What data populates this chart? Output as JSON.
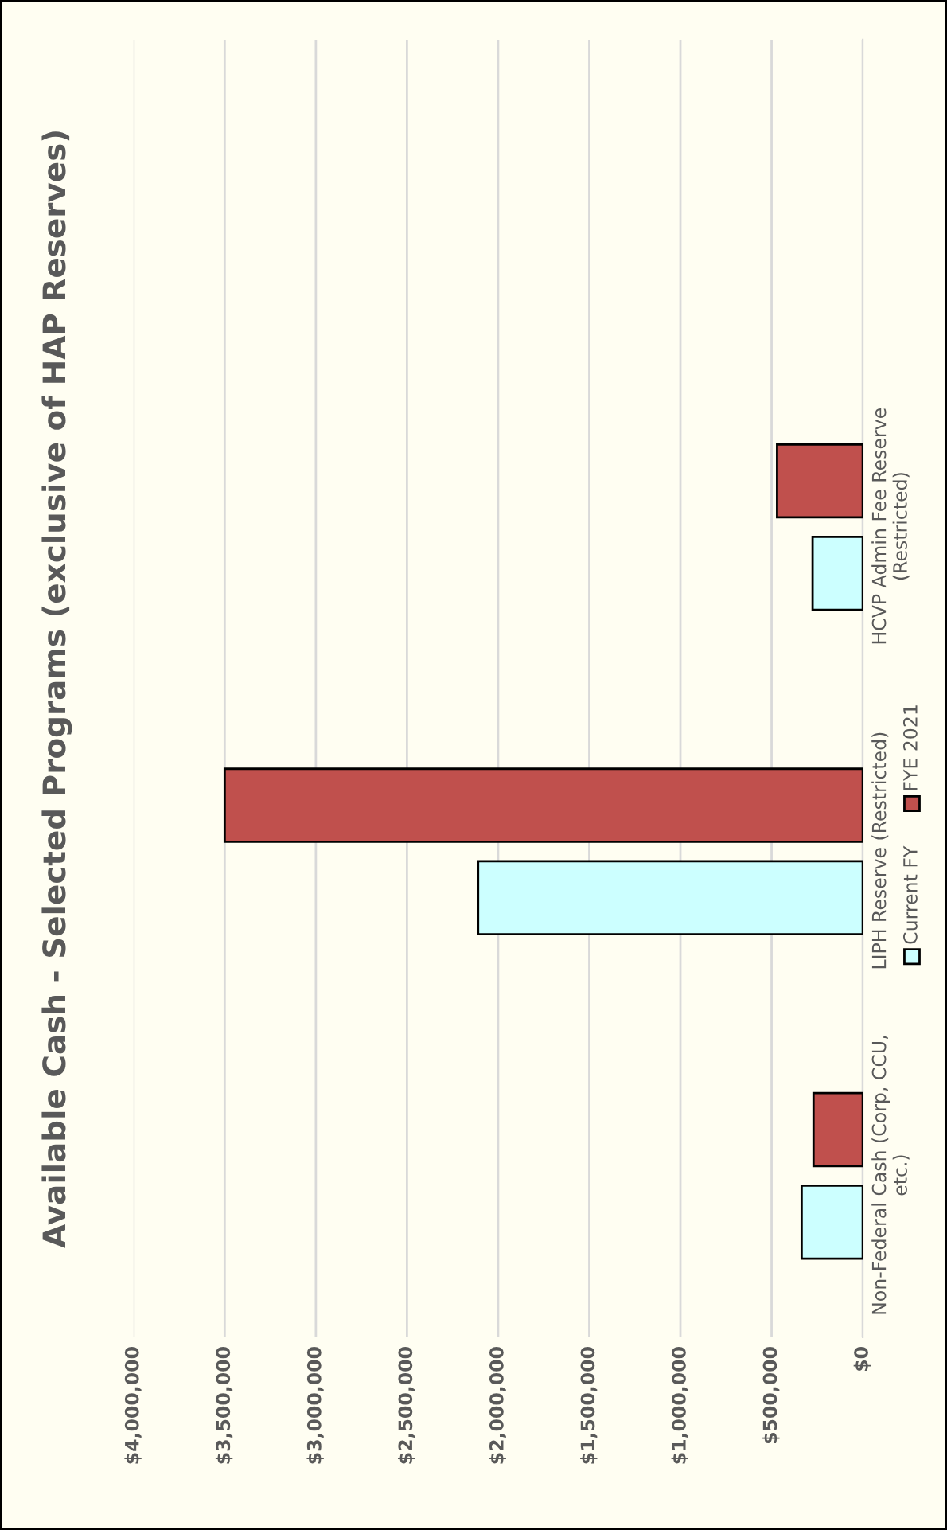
{
  "chart_data": {
    "type": "bar",
    "orientation": "horizontal",
    "title": "Available Cash - Selected Programs (exclusive of HAP Reserves)",
    "categories": [
      "HCVP Admin Fee Reserve\n(Restricted)",
      "LIPH Reserve (Restricted)",
      "Non-Federal Cash (Corp, CCU,\netc.)"
    ],
    "series": [
      {
        "name": "Current FY",
        "color": "#ccffff",
        "values": [
          275000,
          2110000,
          335000
        ]
      },
      {
        "name": "FYE 2021",
        "color": "#c0504d",
        "values": [
          470000,
          3500000,
          270000
        ]
      }
    ],
    "xlim": [
      4000000,
      0
    ],
    "xticks": [
      {
        "value": 0,
        "label": "$0"
      },
      {
        "value": 500000,
        "label": "$500,000"
      },
      {
        "value": 1000000,
        "label": "$1,000,000"
      },
      {
        "value": 1500000,
        "label": "$1,500,000"
      },
      {
        "value": 2000000,
        "label": "$2,000,000"
      },
      {
        "value": 2500000,
        "label": "$2,500,000"
      },
      {
        "value": 3000000,
        "label": "$3,000,000"
      },
      {
        "value": 3500000,
        "label": "$3,500,000"
      },
      {
        "value": 4000000,
        "label": "$4,000,000"
      }
    ],
    "grid": "x",
    "legend": "right"
  }
}
